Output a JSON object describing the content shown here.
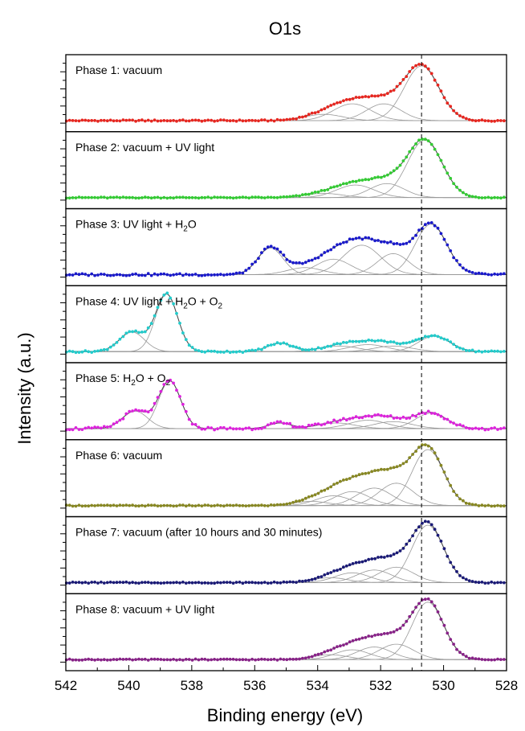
{
  "chart_data": {
    "type": "line",
    "title": "O1s",
    "xlabel": "Binding energy (eV)",
    "ylabel": "Intensity (a.u.)",
    "xlim": [
      542,
      528
    ],
    "x_reversed": true,
    "xticks": [
      542,
      540,
      538,
      536,
      534,
      532,
      530,
      528
    ],
    "reference_line_ev": 530.7,
    "baseline_fraction": 0.15,
    "series_color": "#111111",
    "component_color": "#999999",
    "fit_color": "#444444",
    "panels": [
      {
        "label": "Phase 1: vacuum",
        "marker_color": "#e8261f",
        "components": [
          {
            "center": 530.7,
            "height": 0.78,
            "width": 0.55
          },
          {
            "center": 531.9,
            "height": 0.24,
            "width": 0.55
          },
          {
            "center": 532.9,
            "height": 0.24,
            "width": 0.6
          },
          {
            "center": 533.8,
            "height": 0.09,
            "width": 0.6
          }
        ],
        "noise": 0.01
      },
      {
        "label": "Phase 2: vacuum + UV light",
        "marker_color": "#33cc33",
        "components": [
          {
            "center": 530.6,
            "height": 0.82,
            "width": 0.55
          },
          {
            "center": 531.8,
            "height": 0.2,
            "width": 0.55
          },
          {
            "center": 532.8,
            "height": 0.18,
            "width": 0.6
          },
          {
            "center": 533.8,
            "height": 0.06,
            "width": 0.6
          }
        ],
        "noise": 0.008
      },
      {
        "label": "Phase 3: UV light + H",
        "label_sub1": "2",
        "label_rest": "O",
        "marker_color": "#1a1acc",
        "components": [
          {
            "center": 530.4,
            "height": 0.72,
            "width": 0.5
          },
          {
            "center": 531.6,
            "height": 0.3,
            "width": 0.5
          },
          {
            "center": 532.6,
            "height": 0.42,
            "width": 0.6
          },
          {
            "center": 533.5,
            "height": 0.22,
            "width": 0.55
          },
          {
            "center": 534.4,
            "height": 0.1,
            "width": 0.55
          },
          {
            "center": 535.5,
            "height": 0.38,
            "width": 0.4
          }
        ],
        "noise": 0.015
      },
      {
        "label": "Phase 4: UV light + H",
        "label_sub1": "2",
        "label_rest": "O + O",
        "label_sub2": "2",
        "marker_color": "#22cccc",
        "components": [
          {
            "center": 530.3,
            "height": 0.22,
            "width": 0.5
          },
          {
            "center": 531.6,
            "height": 0.08,
            "width": 0.6
          },
          {
            "center": 532.4,
            "height": 0.1,
            "width": 0.6
          },
          {
            "center": 533.3,
            "height": 0.08,
            "width": 0.6
          },
          {
            "center": 535.2,
            "height": 0.12,
            "width": 0.4
          },
          {
            "center": 538.8,
            "height": 0.82,
            "width": 0.35
          },
          {
            "center": 539.9,
            "height": 0.28,
            "width": 0.4
          }
        ],
        "noise": 0.012
      },
      {
        "label": "Phase 5: H",
        "label_sub1": "2",
        "label_rest": "O + O",
        "label_sub2": "2",
        "marker_color": "#dd22dd",
        "components": [
          {
            "center": 530.4,
            "height": 0.22,
            "width": 0.5
          },
          {
            "center": 531.6,
            "height": 0.1,
            "width": 0.6
          },
          {
            "center": 532.4,
            "height": 0.12,
            "width": 0.6
          },
          {
            "center": 533.4,
            "height": 0.08,
            "width": 0.6
          },
          {
            "center": 535.2,
            "height": 0.08,
            "width": 0.35
          },
          {
            "center": 538.7,
            "height": 0.68,
            "width": 0.35
          },
          {
            "center": 539.8,
            "height": 0.25,
            "width": 0.4
          }
        ],
        "noise": 0.02
      },
      {
        "label": "Phase 6: vacuum",
        "marker_color": "#888822",
        "components": [
          {
            "center": 530.5,
            "height": 0.8,
            "width": 0.5
          },
          {
            "center": 531.5,
            "height": 0.32,
            "width": 0.55
          },
          {
            "center": 532.2,
            "height": 0.25,
            "width": 0.55
          },
          {
            "center": 532.9,
            "height": 0.2,
            "width": 0.55
          },
          {
            "center": 533.5,
            "height": 0.14,
            "width": 0.55
          },
          {
            "center": 534.2,
            "height": 0.06,
            "width": 0.55
          }
        ],
        "noise": 0.008
      },
      {
        "label": "Phase 7: vacuum (after 10 hours and 30 minutes)",
        "marker_color": "#1a1a77",
        "components": [
          {
            "center": 530.5,
            "height": 0.82,
            "width": 0.5
          },
          {
            "center": 531.5,
            "height": 0.22,
            "width": 0.55
          },
          {
            "center": 532.2,
            "height": 0.18,
            "width": 0.55
          },
          {
            "center": 532.9,
            "height": 0.14,
            "width": 0.55
          },
          {
            "center": 533.6,
            "height": 0.07,
            "width": 0.55
          }
        ],
        "noise": 0.008
      },
      {
        "label": "Phase 8: vacuum + UV light",
        "marker_color": "#882288",
        "components": [
          {
            "center": 530.5,
            "height": 0.82,
            "width": 0.5
          },
          {
            "center": 531.5,
            "height": 0.22,
            "width": 0.55
          },
          {
            "center": 532.2,
            "height": 0.18,
            "width": 0.55
          },
          {
            "center": 532.9,
            "height": 0.14,
            "width": 0.55
          },
          {
            "center": 533.6,
            "height": 0.07,
            "width": 0.55
          }
        ],
        "noise": 0.008
      }
    ]
  }
}
